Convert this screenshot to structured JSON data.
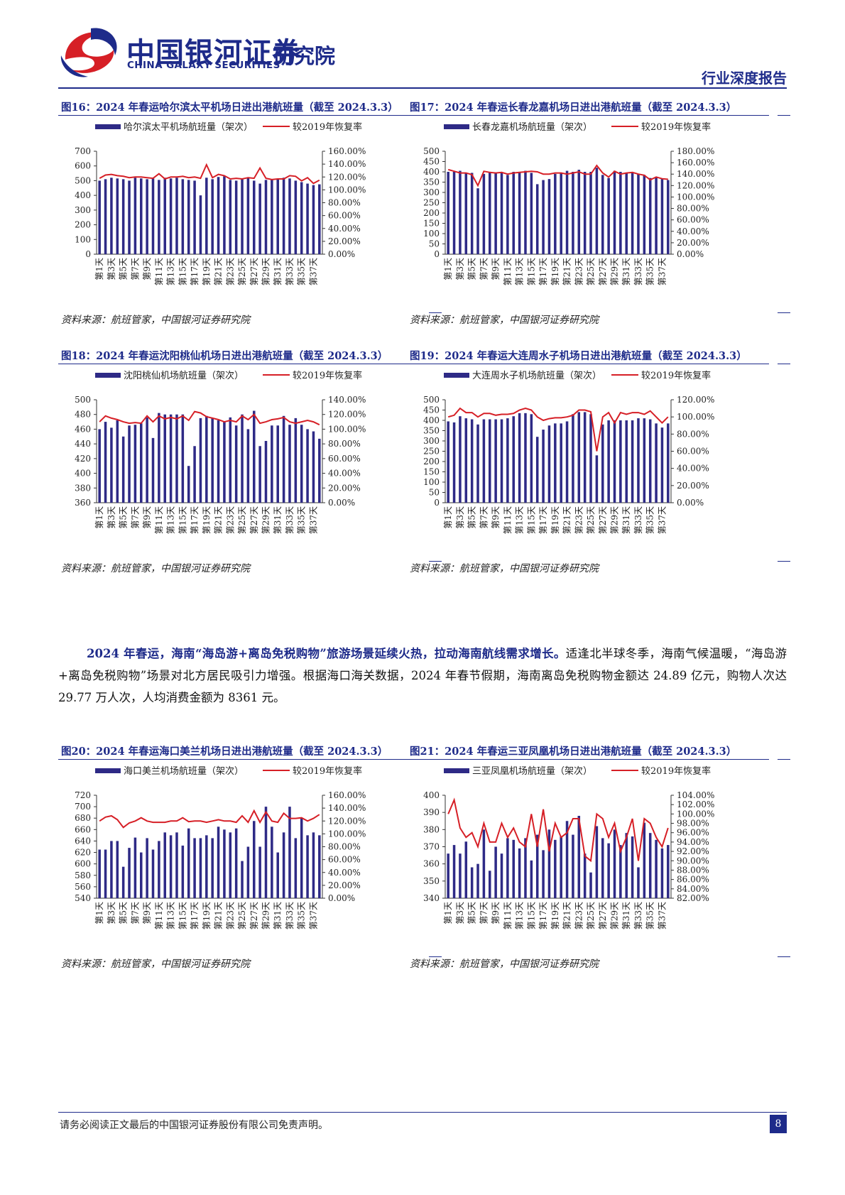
{
  "header": {
    "brand_cn": "中国银河证券",
    "brand_sub": "研究院",
    "brand_en": "CHINA GALAXY SECURITIES",
    "report_type": "行业深度报告",
    "logo_colors": {
      "blue": "#1e2b8a",
      "red": "#d61f26"
    }
  },
  "colors": {
    "bar": "#2e2a86",
    "line": "#d61f26",
    "accent": "#1e2b8a"
  },
  "legend": {
    "line_label": "较2019年恢复率"
  },
  "x_tick_labels": [
    "第1天",
    "第3天",
    "第5天",
    "第7天",
    "第9天",
    "第11天",
    "第13天",
    "第15天",
    "第17天",
    "第19天",
    "第21天",
    "第23天",
    "第25天",
    "第27天",
    "第29天",
    "第31天",
    "第33天",
    "第35天",
    "第37天"
  ],
  "figures": [
    {
      "id": "fig16",
      "title": "图16：2024 年春运哈尔滨太平机场日进出港航班量（截至 2024.3.3）",
      "source": "资料来源：航班管家，中国银河证券研究院",
      "bar_label": "哈尔滨太平机场航班量（架次）",
      "left_ticks": [
        "700",
        "600",
        "500",
        "400",
        "300",
        "200",
        "100",
        "0"
      ],
      "right_ticks": [
        "160.00%",
        "140.00%",
        "120.00%",
        "100.00%",
        "80.00%",
        "60.00%",
        "40.00%",
        "20.00%",
        "0.00%"
      ]
    },
    {
      "id": "fig17",
      "title": "图17：2024 年春运长春龙嘉机场日进出港航班量（截至 2024.3.3）",
      "source": "资料来源：航班管家，中国银河证券研究院",
      "bar_label": "长春龙嘉机场航班量（架次）",
      "left_ticks": [
        "500",
        "450",
        "400",
        "350",
        "300",
        "250",
        "200",
        "150",
        "100",
        "50",
        "0"
      ],
      "right_ticks": [
        "180.00%",
        "160.00%",
        "140.00%",
        "120.00%",
        "100.00%",
        "80.00%",
        "60.00%",
        "40.00%",
        "20.00%",
        "0.00%"
      ]
    },
    {
      "id": "fig18",
      "title": "图18：2024 年春运沈阳桃仙机场日进出港航班量（截至 2024.3.3）",
      "source": "资料来源：航班管家，中国银河证券研究院",
      "bar_label": "沈阳桃仙机场航班量（架次）",
      "left_ticks": [
        "500",
        "480",
        "460",
        "440",
        "420",
        "400",
        "380",
        "360"
      ],
      "right_ticks": [
        "140.00%",
        "120.00%",
        "100.00%",
        "80.00%",
        "60.00%",
        "40.00%",
        "20.00%",
        "0.00%"
      ]
    },
    {
      "id": "fig19",
      "title": "图19：2024 年春运大连周水子机场日进出港航班量（截至 2024.3.3）",
      "source": "资料来源：航班管家，中国银河证券研究院",
      "bar_label": "大连周水子机场航班量（架次）",
      "left_ticks": [
        "500",
        "450",
        "400",
        "350",
        "300",
        "250",
        "200",
        "150",
        "100",
        "50",
        "0"
      ],
      "right_ticks": [
        "120.00%",
        "100.00%",
        "80.00%",
        "60.00%",
        "40.00%",
        "20.00%",
        "0.00%"
      ]
    },
    {
      "id": "fig20",
      "title": "图20：2024 年春运海口美兰机场日进出港航班量（截至 2024.3.3）",
      "source": "资料来源：航班管家，中国银河证券研究院",
      "bar_label": "海口美兰机场航班量（架次）",
      "left_ticks": [
        "720",
        "700",
        "680",
        "660",
        "640",
        "620",
        "600",
        "580",
        "560",
        "540"
      ],
      "right_ticks": [
        "160.00%",
        "140.00%",
        "120.00%",
        "100.00%",
        "80.00%",
        "60.00%",
        "40.00%",
        "20.00%",
        "0.00%"
      ]
    },
    {
      "id": "fig21",
      "title": "图21：2024 年春运三亚凤凰机场日进出港航班量（截至 2024.3.3）",
      "source": "资料来源：航班管家，中国银河证券研究院",
      "bar_label": "三亚凤凰机场航班量（架次）",
      "left_ticks": [
        "400",
        "390",
        "380",
        "370",
        "360",
        "350",
        "340"
      ],
      "right_ticks": [
        "104.00%",
        "102.00%",
        "100.00%",
        "98.00%",
        "96.00%",
        "94.00%",
        "92.00%",
        "90.00%",
        "88.00%",
        "86.00%",
        "84.00%",
        "82.00%"
      ]
    }
  ],
  "paragraph": {
    "lead": "2024 年春运，海南“海岛游+离岛免税购物”旅游场景延续火热，拉动海南航线需求增长。",
    "body": "适逢北半球冬季，海南气候温暖，“海岛游+离岛免税购物”场景对北方居民吸引力增强。根据海口海关数据，2024 年春节假期，海南离岛免税购物金额达 24.89 亿元，购物人次达 29.77 万人次，人均消费金额为 8361 元。"
  },
  "footer": {
    "disclaimer": "请务必阅读正文最后的中国银河证券股份有限公司免责声明。",
    "page": "8"
  },
  "chart_data": [
    {
      "type": "bar",
      "id": "fig16",
      "categories_count": 38,
      "ylim": [
        0,
        700
      ],
      "y2lim": [
        0,
        160
      ],
      "series": [
        {
          "name": "哈尔滨太平机场航班量（架次）",
          "axis": "left",
          "values": [
            500,
            510,
            520,
            515,
            510,
            500,
            520,
            515,
            510,
            515,
            505,
            520,
            515,
            520,
            510,
            505,
            500,
            400,
            520,
            510,
            525,
            530,
            505,
            500,
            510,
            520,
            500,
            480,
            505,
            510,
            510,
            520,
            515,
            500,
            490,
            480,
            470,
            475
          ]
        },
        {
          "name": "较2019年恢复率",
          "axis": "right",
          "type": "line",
          "values": [
            118,
            123,
            124,
            122,
            121,
            119,
            120,
            120,
            119,
            118,
            125,
            117,
            120,
            120,
            121,
            119,
            120,
            118,
            139,
            119,
            124,
            122,
            117,
            118,
            117,
            119,
            118,
            134,
            118,
            116,
            117,
            117,
            122,
            121,
            114,
            119,
            110,
            115
          ]
        }
      ]
    },
    {
      "type": "bar",
      "id": "fig17",
      "categories_count": 38,
      "ylim": [
        0,
        500
      ],
      "y2lim": [
        0,
        180
      ],
      "series": [
        {
          "name": "长春龙嘉机场航班量（架次）",
          "axis": "left",
          "values": [
            400,
            400,
            405,
            395,
            395,
            320,
            390,
            395,
            395,
            395,
            385,
            400,
            400,
            405,
            395,
            340,
            360,
            365,
            390,
            395,
            405,
            400,
            410,
            400,
            400,
            420,
            385,
            370,
            405,
            400,
            395,
            395,
            390,
            385,
            370,
            375,
            365,
            360
          ]
        },
        {
          "name": "较2019年恢复率",
          "axis": "right",
          "type": "line",
          "values": [
            148,
            145,
            142,
            142,
            139,
            120,
            145,
            143,
            142,
            143,
            140,
            142,
            143,
            144,
            145,
            144,
            140,
            140,
            142,
            142,
            140,
            142,
            144,
            140,
            140,
            155,
            142,
            135,
            145,
            140,
            142,
            143,
            140,
            138,
            130,
            135,
            132,
            131
          ]
        }
      ]
    },
    {
      "type": "bar",
      "id": "fig18",
      "categories_count": 38,
      "ylim": [
        360,
        500
      ],
      "y2lim": [
        0,
        140
      ],
      "series": [
        {
          "name": "沈阳桃仙机场航班量（架次）",
          "axis": "left",
          "values": [
            460,
            470,
            462,
            472,
            450,
            465,
            466,
            468,
            476,
            448,
            482,
            480,
            480,
            480,
            480,
            410,
            437,
            475,
            478,
            475,
            472,
            470,
            476,
            465,
            480,
            460,
            485,
            437,
            444,
            465,
            465,
            478,
            466,
            475,
            466,
            460,
            457,
            447
          ]
        },
        {
          "name": "较2019年恢复率",
          "axis": "right",
          "type": "line",
          "values": [
            110,
            118,
            115,
            113,
            110,
            108,
            109,
            108,
            118,
            110,
            118,
            114,
            116,
            114,
            118,
            112,
            124,
            122,
            117,
            115,
            113,
            110,
            112,
            110,
            118,
            113,
            120,
            108,
            110,
            113,
            114,
            116,
            110,
            108,
            110,
            112,
            110,
            106
          ]
        }
      ]
    },
    {
      "type": "bar",
      "id": "fig19",
      "categories_count": 38,
      "ylim": [
        0,
        500
      ],
      "y2lim": [
        0,
        120
      ],
      "series": [
        {
          "name": "大连周水子机场航班量（架次）",
          "axis": "left",
          "values": [
            395,
            390,
            420,
            410,
            405,
            380,
            405,
            405,
            405,
            405,
            410,
            420,
            435,
            435,
            430,
            320,
            355,
            375,
            385,
            385,
            395,
            430,
            440,
            440,
            430,
            230,
            380,
            400,
            400,
            400,
            400,
            400,
            410,
            410,
            405,
            385,
            365,
            385
          ]
        },
        {
          "name": "较2019年恢复率",
          "axis": "right",
          "type": "line",
          "values": [
            100,
            102,
            110,
            105,
            105,
            100,
            104,
            104,
            102,
            103,
            103,
            104,
            108,
            110,
            108,
            100,
            96,
            98,
            99,
            99,
            100,
            102,
            108,
            108,
            106,
            60,
            100,
            105,
            93,
            105,
            103,
            105,
            105,
            103,
            107,
            100,
            93,
            100
          ]
        }
      ]
    },
    {
      "type": "bar",
      "id": "fig20",
      "categories_count": 38,
      "ylim": [
        540,
        720
      ],
      "y2lim": [
        0,
        160
      ],
      "series": [
        {
          "name": "海口美兰机场航班量（架次）",
          "axis": "left",
          "values": [
            625,
            625,
            640,
            640,
            595,
            628,
            646,
            620,
            645,
            625,
            640,
            655,
            650,
            655,
            632,
            662,
            645,
            645,
            650,
            645,
            665,
            660,
            655,
            662,
            605,
            630,
            675,
            630,
            700,
            665,
            620,
            655,
            700,
            645,
            680,
            650,
            655,
            650
          ]
        },
        {
          "name": "较2019年恢复率",
          "axis": "right",
          "type": "line",
          "values": [
            120,
            126,
            128,
            122,
            110,
            117,
            120,
            125,
            120,
            118,
            118,
            118,
            120,
            120,
            125,
            119,
            120,
            120,
            118,
            120,
            122,
            120,
            120,
            118,
            128,
            118,
            136,
            118,
            134,
            120,
            118,
            132,
            124,
            124,
            125,
            120,
            124,
            130
          ]
        }
      ]
    },
    {
      "type": "bar",
      "id": "fig21",
      "categories_count": 38,
      "ylim": [
        340,
        400
      ],
      "y2lim": [
        82,
        104
      ],
      "series": [
        {
          "name": "三亚凤凰机场航班量（架次）",
          "axis": "left",
          "values": [
            366,
            371,
            366,
            373,
            358,
            360,
            380,
            356,
            370,
            366,
            375,
            374,
            369,
            375,
            362,
            377,
            368,
            380,
            374,
            376,
            385,
            377,
            388,
            366,
            355,
            382,
            375,
            372,
            380,
            371,
            378,
            376,
            358,
            384,
            378,
            374,
            369,
            371
          ]
        },
        {
          "name": "较2019年恢复率",
          "axis": "right",
          "type": "line",
          "values": [
            100,
            103,
            97,
            95,
            96,
            93,
            98,
            94,
            94,
            98,
            95,
            97,
            94,
            93,
            100,
            93,
            101,
            92,
            98,
            95,
            96,
            99,
            99,
            91,
            90,
            100,
            99,
            95,
            98,
            92,
            95,
            99,
            90,
            99,
            98,
            95,
            93,
            97
          ]
        }
      ]
    }
  ]
}
